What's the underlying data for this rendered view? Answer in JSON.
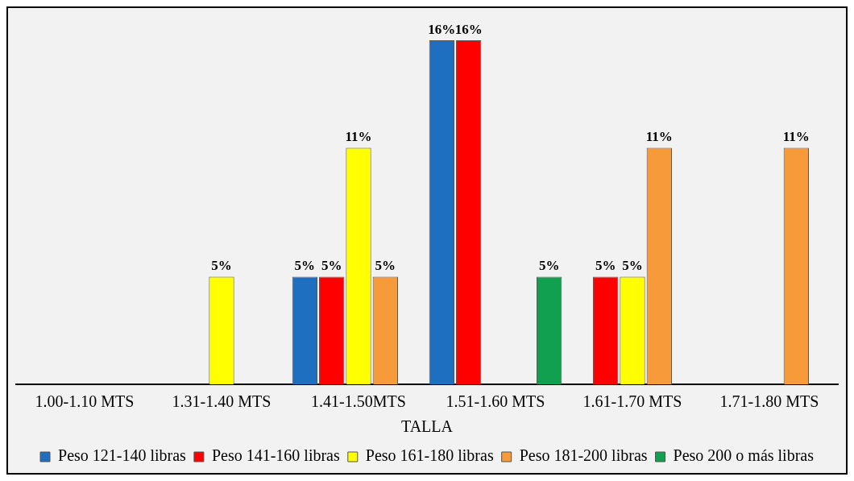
{
  "chart_data": {
    "type": "bar",
    "xlabel": "TALLA",
    "categories": [
      "1.00-1.10 MTS",
      "1.31-1.40 MTS",
      "1.41-1.50MTS",
      "1.51-1.60 MTS",
      "1.61-1.70 MTS",
      "1.71-1.80 MTS"
    ],
    "series": [
      {
        "name": "Peso 121-140 libras",
        "color": "#1f6fc0",
        "values": [
          null,
          null,
          5,
          16,
          null,
          null
        ],
        "value_labels": [
          null,
          null,
          "5%",
          "16%",
          null,
          null
        ]
      },
      {
        "name": "Peso 141-160 libras",
        "color": "#ff0000",
        "values": [
          null,
          null,
          5,
          16,
          5,
          null
        ],
        "value_labels": [
          null,
          null,
          "5%",
          "16%",
          "5%",
          null
        ]
      },
      {
        "name": "Peso 161-180 libras",
        "color": "#ffff00",
        "values": [
          null,
          5,
          11,
          null,
          5,
          null
        ],
        "value_labels": [
          null,
          "5%",
          "11%",
          null,
          "5%",
          null
        ]
      },
      {
        "name": "Peso 181-200 libras",
        "color": "#f79a3a",
        "values": [
          null,
          null,
          5,
          null,
          11,
          11
        ],
        "value_labels": [
          null,
          null,
          "5%",
          null,
          "11%",
          "11%"
        ]
      },
      {
        "name": "Peso 200 o más libras",
        "color": "#10a050",
        "values": [
          null,
          null,
          null,
          5,
          null,
          null
        ],
        "value_labels": [
          null,
          null,
          null,
          "5%",
          null,
          null
        ]
      }
    ],
    "grid": false,
    "legend": "bottom"
  }
}
